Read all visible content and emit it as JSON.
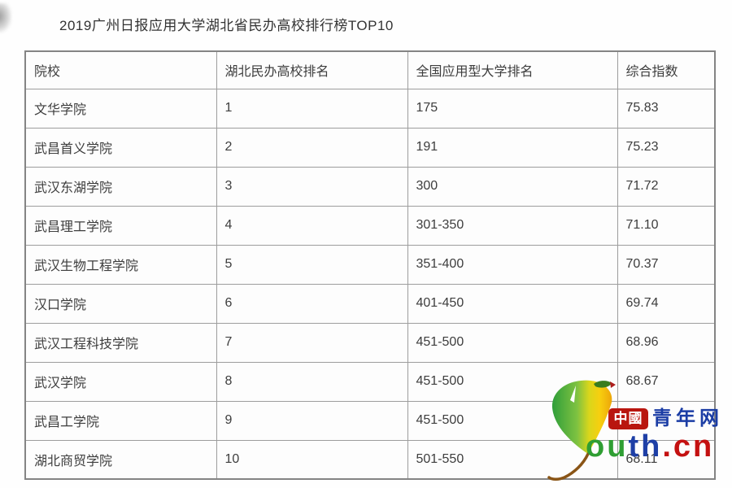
{
  "page": {
    "title": "2019广州日报应用大学湖北省民办高校排行榜TOP10"
  },
  "table": {
    "columns": [
      "院校",
      "湖北民办高校排名",
      "全国应用型大学排名",
      "综合指数"
    ],
    "rows": [
      {
        "school": "文华学院",
        "hubei_rank": "1",
        "national_rank": "175",
        "index": "75.83"
      },
      {
        "school": "武昌首义学院",
        "hubei_rank": "2",
        "national_rank": "191",
        "index": "75.23"
      },
      {
        "school": "武汉东湖学院",
        "hubei_rank": "3",
        "national_rank": "300",
        "index": "71.72"
      },
      {
        "school": "武昌理工学院",
        "hubei_rank": "4",
        "national_rank": "301-350",
        "index": "71.10"
      },
      {
        "school": "武汉生物工程学院",
        "hubei_rank": "5",
        "national_rank": "351-400",
        "index": "70.37"
      },
      {
        "school": "汉口学院",
        "hubei_rank": "6",
        "national_rank": "401-450",
        "index": "69.74"
      },
      {
        "school": "武汉工程科技学院",
        "hubei_rank": "7",
        "national_rank": "451-500",
        "index": "68.96"
      },
      {
        "school": "武汉学院",
        "hubei_rank": "8",
        "national_rank": "451-500",
        "index": "68.67"
      },
      {
        "school": "武昌工学院",
        "hubei_rank": "9",
        "national_rank": "451-500",
        "index": ""
      },
      {
        "school": "湖北商贸学院",
        "hubei_rank": "10",
        "national_rank": "501-550",
        "index": "68.11"
      }
    ]
  },
  "watermark": {
    "badge_text": "中國",
    "site_name": "青年网",
    "brand_parts": [
      {
        "text": "ou",
        "color": "#2f9e33"
      },
      {
        "text": "th",
        "color": "#1e3fa6"
      },
      {
        "text": ".cn",
        "color": "#c41111"
      }
    ],
    "icon": "ginkgo-leaf-icon",
    "colors": {
      "badge_bg": "#b9160f",
      "site_name_blue": "#1b3da5",
      "leaf_green": "#2f9e3a",
      "leaf_yellow": "#f7cf0f",
      "stem_brown": "#8a5516"
    }
  }
}
